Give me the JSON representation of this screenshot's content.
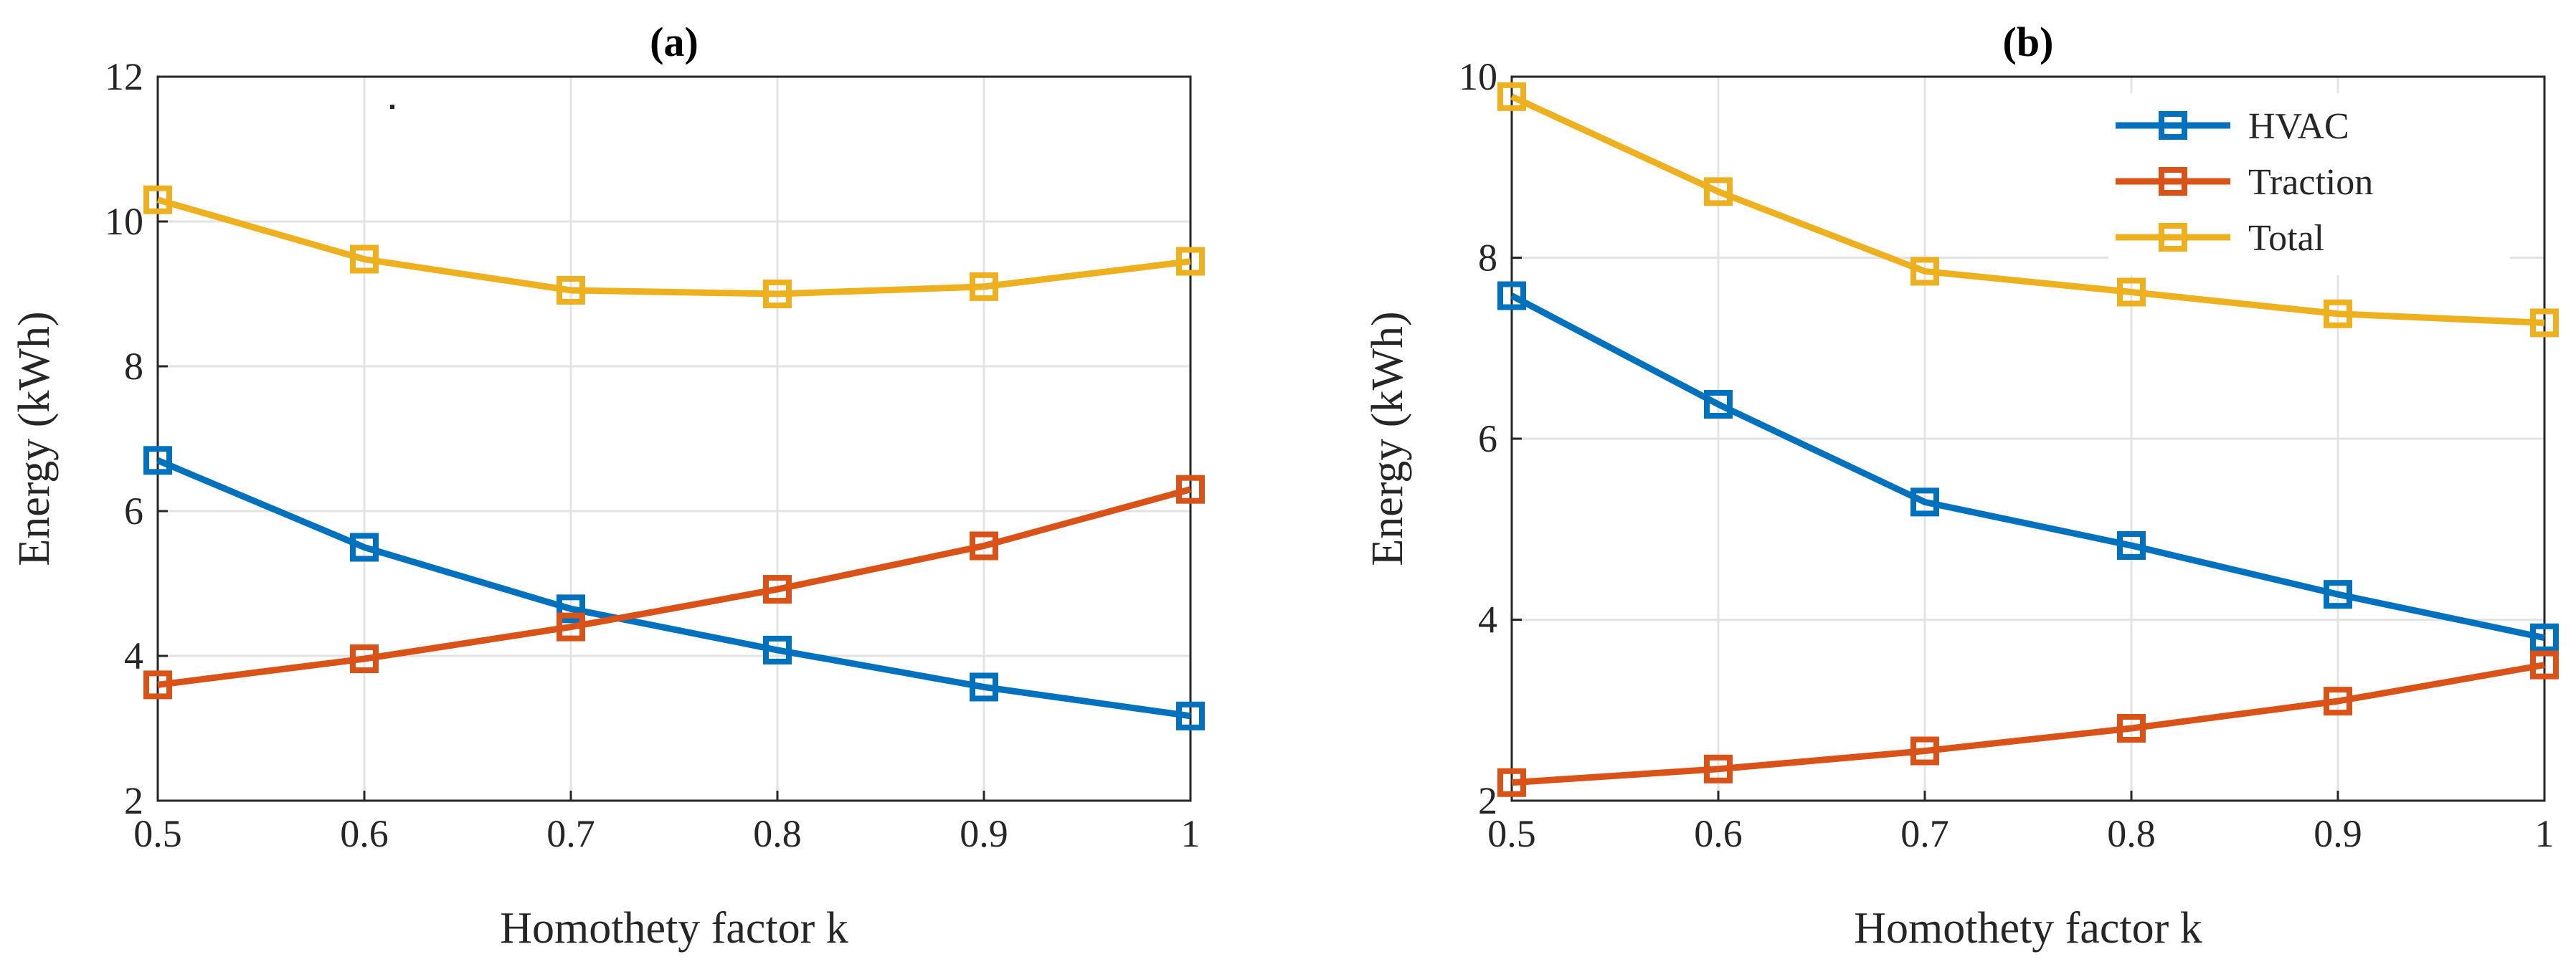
{
  "chart_data": [
    {
      "type": "line",
      "panel": "a",
      "title": "(a)",
      "xlabel": "Homothety factor k",
      "ylabel": "Energy (kWh)",
      "x": [
        0.5,
        0.6,
        0.7,
        0.8,
        0.9,
        1
      ],
      "xticks": [
        "0.5",
        "0.6",
        "0.7",
        "0.8",
        "0.9",
        "1"
      ],
      "xlim": [
        0.5,
        1
      ],
      "ylim": [
        2,
        12
      ],
      "yticks": [
        "2",
        "4",
        "6",
        "8",
        "10",
        "12"
      ],
      "yticks_values": [
        2,
        4,
        6,
        8,
        10,
        12
      ],
      "grid": true,
      "legend": null,
      "series": [
        {
          "name": "HVAC",
          "color": "#0072BD",
          "values": [
            6.7,
            5.5,
            4.65,
            4.08,
            3.57,
            3.17
          ]
        },
        {
          "name": "Traction",
          "color": "#D95319",
          "values": [
            3.6,
            3.96,
            4.4,
            4.92,
            5.52,
            6.3
          ]
        },
        {
          "name": "Total",
          "color": "#EDB120",
          "values": [
            10.3,
            9.48,
            9.05,
            9.0,
            9.1,
            9.45
          ]
        }
      ]
    },
    {
      "type": "line",
      "panel": "b",
      "title": "(b)",
      "xlabel": "Homothety factor k",
      "ylabel": "Energy (kWh)",
      "x": [
        0.5,
        0.6,
        0.7,
        0.8,
        0.9,
        1
      ],
      "xticks": [
        "0.5",
        "0.6",
        "0.7",
        "0.8",
        "0.9",
        "1"
      ],
      "xlim": [
        0.5,
        1
      ],
      "ylim": [
        2,
        10
      ],
      "yticks": [
        "2",
        "4",
        "6",
        "8",
        "10"
      ],
      "yticks_values": [
        2,
        4,
        6,
        8,
        10
      ],
      "grid": true,
      "legend": "top-right",
      "series": [
        {
          "name": "HVAC",
          "color": "#0072BD",
          "values": [
            7.58,
            6.38,
            5.3,
            4.82,
            4.28,
            3.8
          ]
        },
        {
          "name": "Traction",
          "color": "#D95319",
          "values": [
            2.2,
            2.35,
            2.55,
            2.8,
            3.1,
            3.5
          ]
        },
        {
          "name": "Total",
          "color": "#EDB120",
          "values": [
            9.78,
            8.73,
            7.85,
            7.62,
            7.38,
            7.28
          ]
        }
      ]
    }
  ]
}
